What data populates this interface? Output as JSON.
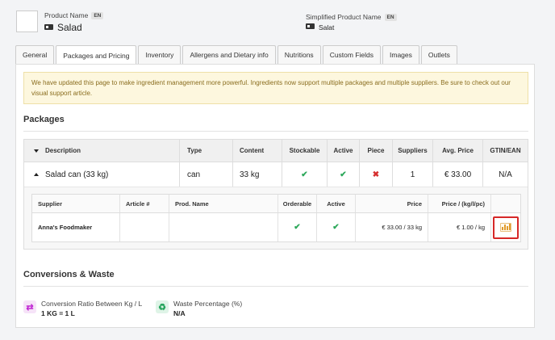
{
  "header": {
    "product_name_label": "Product Name",
    "product_name_lang": "EN",
    "product_name": "Salad",
    "simplified_label": "Simplified Product Name",
    "simplified_lang": "EN",
    "simplified_name": "Salat"
  },
  "tabs": [
    {
      "label": "General",
      "active": false
    },
    {
      "label": "Packages and Pricing",
      "active": true
    },
    {
      "label": "Inventory",
      "active": false
    },
    {
      "label": "Allergens and Dietary info",
      "active": false
    },
    {
      "label": "Nutritions",
      "active": false
    },
    {
      "label": "Custom Fields",
      "active": false
    },
    {
      "label": "Images",
      "active": false
    },
    {
      "label": "Outlets",
      "active": false
    }
  ],
  "notice": {
    "text": "We have updated this page to make ingredient management more powerful. Ingredients now support multiple packages and multiple suppliers. Be sure to check out our ",
    "link": "visual support article",
    "end": "."
  },
  "packages": {
    "title": "Packages",
    "columns": [
      "Description",
      "Type",
      "Content",
      "Stockable",
      "Active",
      "Piece",
      "Suppliers",
      "Avg. Price",
      "GTIN/EAN"
    ],
    "row": {
      "description": "Salad can (33 kg)",
      "type": "can",
      "content": "33 kg",
      "stockable": "✔",
      "active": "✔",
      "piece": "✖",
      "suppliers": "1",
      "avg_price": "€ 33.00",
      "gtin": "N/A"
    },
    "supplier_columns": [
      "Supplier",
      "Article #",
      "Prod. Name",
      "Orderable",
      "Active",
      "Price",
      "Price / (kg/l/pc)"
    ],
    "supplier_row": {
      "supplier": "Anna's Foodmaker",
      "article": "",
      "prod_name": "",
      "orderable": "✔",
      "active": "✔",
      "price": "€ 33.00 / 33 kg",
      "unit_price": "€ 1.00 / kg"
    }
  },
  "conversions": {
    "title": "Conversions & Waste",
    "ratio_label": "Conversion Ratio Between Kg / L",
    "ratio_value": "1 KG = 1 L",
    "waste_label": "Waste Percentage (%)",
    "waste_value": "N/A"
  },
  "colors": {
    "check": "#2ca85a",
    "cross": "#d63030",
    "highlight": "#d62828",
    "ratio_icon": "#c026d3",
    "waste_icon": "#22a35a"
  }
}
